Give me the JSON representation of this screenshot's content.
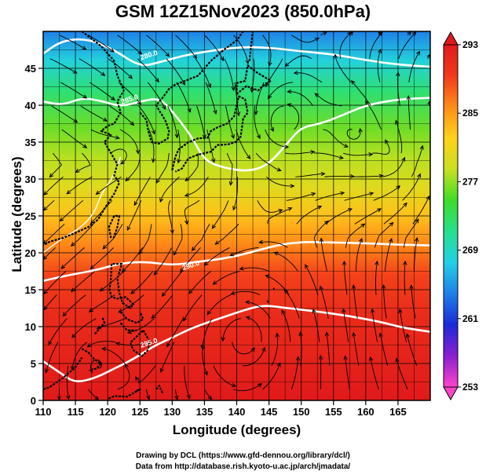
{
  "title": "GSM 12Z15Nov2023 (850.0hPa)",
  "credits": [
    "Drawing by DCL (https://www.gfd-dennou.org/library/dcl/)",
    "Data from http://database.rish.kyoto-u.ac.jp/arch/jmadata/"
  ],
  "chart_data": {
    "type": "heatmap",
    "xlabel": "Longitude (degrees)",
    "ylabel": "Latitude (degrees)",
    "xlim": [
      110,
      170
    ],
    "ylim": [
      0,
      50
    ],
    "xticks": [
      110,
      115,
      120,
      125,
      130,
      135,
      140,
      145,
      150,
      155,
      160,
      165
    ],
    "yticks": [
      0,
      5,
      10,
      15,
      20,
      25,
      30,
      35,
      40,
      45
    ],
    "grid": true,
    "colorbar": {
      "min": 253,
      "max": 293,
      "ticks": [
        253,
        261,
        269,
        277,
        285,
        293
      ],
      "colors": [
        "#ff44cc",
        "#8a1fd0",
        "#1a2ad8",
        "#1f7fe8",
        "#22d0e6",
        "#26e08c",
        "#3fdc2a",
        "#c8e020",
        "#ffd21a",
        "#ff8c18",
        "#f23a1a",
        "#e01a1a"
      ]
    },
    "contour_labels": [
      {
        "text": "280.0",
        "lon": 126.5,
        "lat": 46.5
      },
      {
        "text": "285.0",
        "lon": 123.5,
        "lat": 40.5
      },
      {
        "text": "290.0",
        "lon": 133,
        "lat": 18
      },
      {
        "text": "295.0",
        "lon": 126.5,
        "lat": 7.5
      }
    ],
    "color_scale": [
      {
        "lat": 50,
        "value": 264
      },
      {
        "lat": 46,
        "value": 268
      },
      {
        "lat": 42,
        "value": 272
      },
      {
        "lat": 37,
        "value": 276
      },
      {
        "lat": 33,
        "value": 278
      },
      {
        "lat": 29,
        "value": 280
      },
      {
        "lat": 25,
        "value": 283
      },
      {
        "lat": 21,
        "value": 286
      },
      {
        "lat": 17,
        "value": 289
      },
      {
        "lat": 12,
        "value": 291
      },
      {
        "lat": 6,
        "value": 292
      },
      {
        "lat": 0,
        "value": 293
      }
    ]
  }
}
